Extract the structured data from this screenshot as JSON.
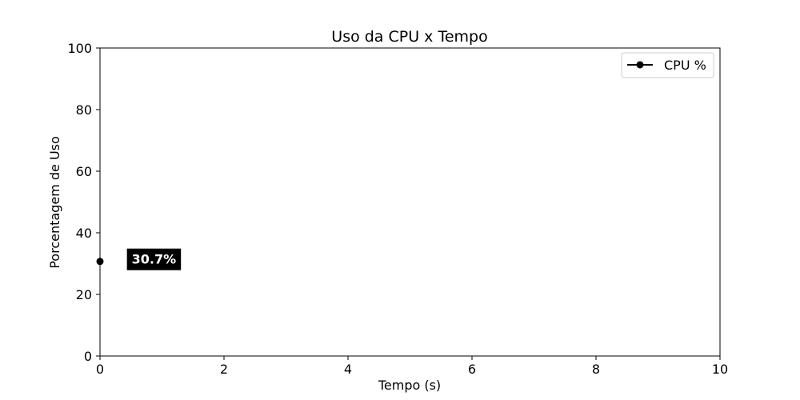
{
  "chart_data": {
    "type": "line",
    "title": "Uso da CPU x Tempo",
    "xlabel": "Tempo (s)",
    "ylabel": "Porcentagem de Uso",
    "xlim": [
      0,
      10
    ],
    "ylim": [
      0,
      100
    ],
    "xticks": [
      0,
      2,
      4,
      6,
      8,
      10
    ],
    "yticks": [
      0,
      20,
      40,
      60,
      80,
      100
    ],
    "grid": false,
    "legend_position": "top-right",
    "series": [
      {
        "name": "CPU %",
        "color": "#000000",
        "marker": "circle",
        "x": [
          0
        ],
        "y": [
          30.7
        ]
      }
    ],
    "annotations": [
      {
        "text": "30.7%",
        "x": 0.87,
        "y": 31.5,
        "background": "#000000",
        "color": "#ffffff"
      }
    ]
  }
}
